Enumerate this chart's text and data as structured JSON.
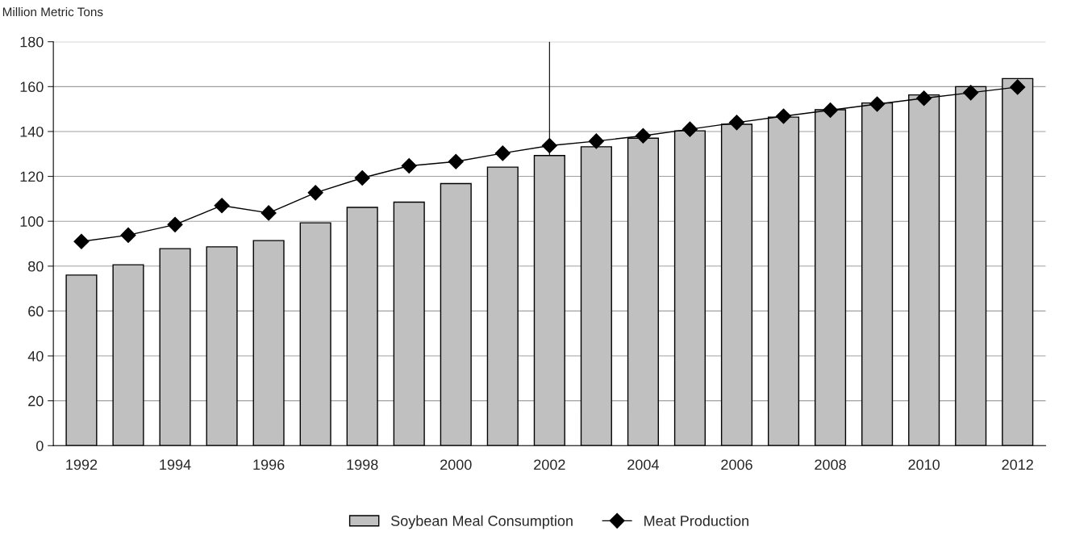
{
  "chart_data": {
    "type": "bar",
    "ylabel": "Million Metric Tons",
    "categories": [
      "1992",
      null,
      "1994",
      null,
      "1996",
      null,
      "1998",
      null,
      "2000",
      null,
      "2002",
      null,
      "2004",
      null,
      "2006",
      null,
      "2008",
      null,
      "2010",
      null,
      "2012"
    ],
    "series": [
      {
        "name": "Soybean Meal Consumption",
        "color": "#c0c0c0",
        "values": [
          76,
          80.6,
          87.8,
          88.6,
          91.4,
          99.3,
          106.2,
          108.5,
          116.8,
          124.1,
          129.3,
          133.2,
          137,
          140.3,
          143.2,
          146.4,
          149.7,
          152.7,
          156.3,
          160,
          163.6
        ]
      },
      {
        "name": "Meat Production",
        "type": "line",
        "color": "#000000",
        "marker": "diamond",
        "values": [
          91,
          93.8,
          98.5,
          107,
          103.7,
          112.7,
          119.3,
          124.7,
          126.6,
          130.3,
          133.7,
          135.7,
          138.1,
          141,
          144,
          146.8,
          149.5,
          152.2,
          154.8,
          157.3,
          159.8
        ]
      }
    ],
    "ylim": [
      0,
      180
    ],
    "yticks": [
      0,
      20,
      40,
      60,
      80,
      100,
      120,
      140,
      160,
      180
    ],
    "ref_lines": [
      {
        "axis": "x",
        "value": "2002",
        "color": "#000000"
      }
    ],
    "grid": "y",
    "legend": "bottom"
  }
}
